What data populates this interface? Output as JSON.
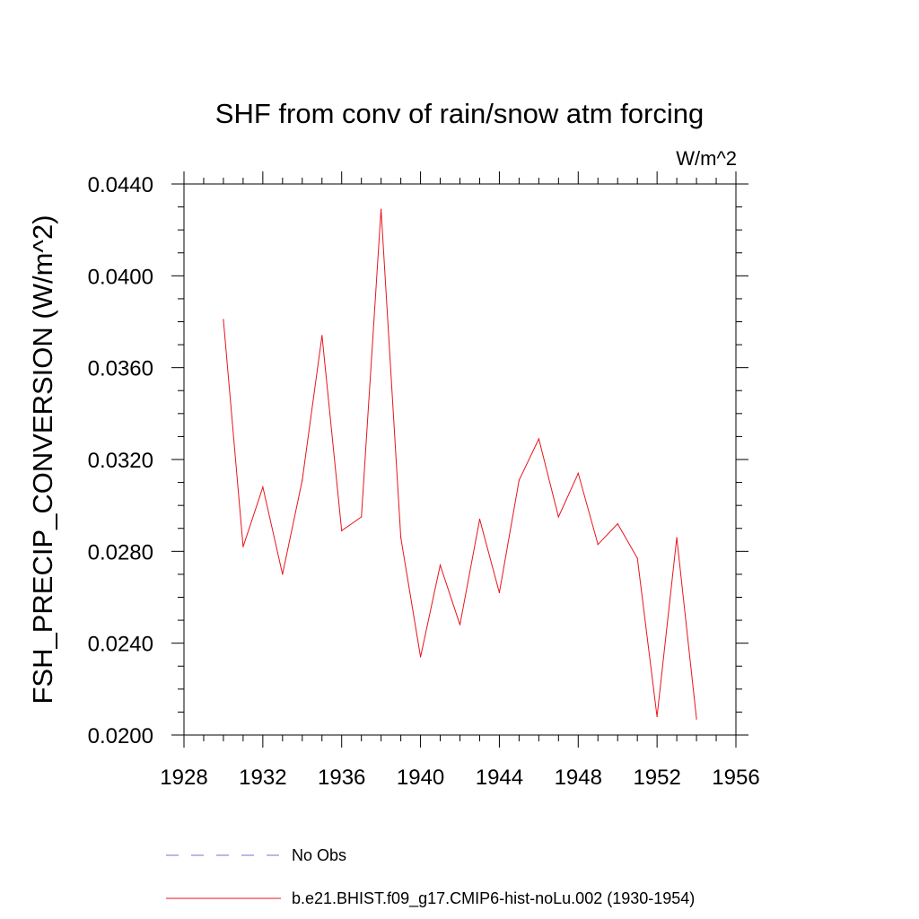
{
  "chart_data": {
    "type": "line",
    "title": "SHF from conv of rain/snow atm forcing",
    "units_label": "W/m^2",
    "xlabel": "",
    "ylabel": "FSH_PRECIP_CONVERSION  (W/m^2)",
    "xlim": [
      1928,
      1956
    ],
    "ylim": [
      0.02,
      0.044
    ],
    "x_ticks": [
      1928,
      1932,
      1936,
      1940,
      1944,
      1948,
      1952,
      1956
    ],
    "x_tick_labels": [
      "1928",
      "1932",
      "1936",
      "1940",
      "1944",
      "1948",
      "1952",
      "1956"
    ],
    "y_ticks": [
      0.02,
      0.024,
      0.028,
      0.032,
      0.036,
      0.04,
      0.044
    ],
    "y_tick_labels": [
      "0.0200",
      "0.0240",
      "0.0280",
      "0.0320",
      "0.0360",
      "0.0400",
      "0.0440"
    ],
    "grid": false,
    "legend_position": "bottom",
    "series": [
      {
        "name": "b.e21.BHIST.f09_g17.CMIP6-hist-noLu.002 (1930-1954)",
        "color": "#e8141c",
        "style": "solid",
        "x": [
          1930,
          1931,
          1932,
          1933,
          1934,
          1935,
          1936,
          1937,
          1938,
          1939,
          1940,
          1941,
          1942,
          1943,
          1944,
          1945,
          1946,
          1947,
          1948,
          1949,
          1950,
          1951,
          1952,
          1953,
          1954
        ],
        "values": [
          0.0381,
          0.0282,
          0.0308,
          0.027,
          0.0311,
          0.0374,
          0.0289,
          0.0295,
          0.0429,
          0.0286,
          0.0234,
          0.0274,
          0.0248,
          0.0294,
          0.0262,
          0.0311,
          0.0329,
          0.0295,
          0.0314,
          0.0283,
          0.0292,
          0.0277,
          0.0208,
          0.0286,
          0.0207
        ]
      }
    ],
    "legend": [
      {
        "label": "No Obs",
        "color": "#7b6fd0",
        "style": "dashed"
      },
      {
        "label": "b.e21.BHIST.f09_g17.CMIP6-hist-noLu.002 (1930-1954)",
        "color": "#e8141c",
        "style": "solid"
      }
    ]
  }
}
